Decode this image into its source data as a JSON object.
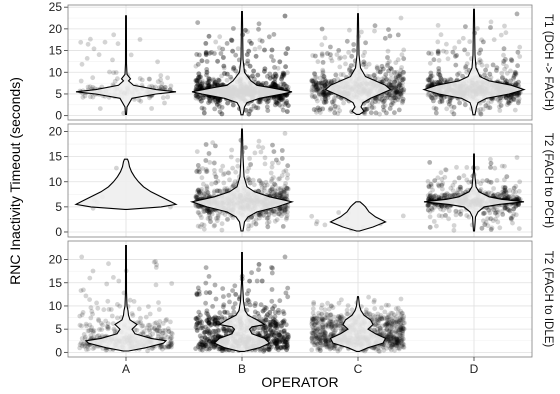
{
  "chart_data": {
    "type": "violin",
    "xlabel": "OPERATOR",
    "ylabel": "RNC Inactivity Timeout (seconds)",
    "categories": [
      "A",
      "B",
      "C",
      "D"
    ],
    "grid": true,
    "panels": [
      {
        "strip_label": "T1 (DCH -> FACH)",
        "ylim": [
          -1,
          25.5
        ],
        "yticks": [
          0,
          5,
          10,
          15,
          20,
          25
        ],
        "violins": [
          {
            "operator": "A",
            "n_points": 160,
            "max": 23,
            "min": 0.3,
            "profile": [
              [
                0.3,
                0.01
              ],
              [
                2,
                0.02
              ],
              [
                4,
                0.12
              ],
              [
                5,
                0.6
              ],
              [
                5.5,
                1.0
              ],
              [
                6,
                0.6
              ],
              [
                7,
                0.15
              ],
              [
                8,
                0.05
              ],
              [
                8.5,
                0.09
              ],
              [
                9.5,
                0.02
              ],
              [
                12,
                0.01
              ],
              [
                23,
                0.003
              ]
            ]
          },
          {
            "operator": "B",
            "n_points": 1700,
            "max": 24,
            "min": 0.2,
            "profile": [
              [
                0.2,
                0.02
              ],
              [
                2,
                0.05
              ],
              [
                3,
                0.1
              ],
              [
                4,
                0.35
              ],
              [
                5,
                0.8
              ],
              [
                5.5,
                1.0
              ],
              [
                6.5,
                0.55
              ],
              [
                7,
                0.3
              ],
              [
                8,
                0.18
              ],
              [
                10,
                0.05
              ],
              [
                13,
                0.02
              ],
              [
                24,
                0.003
              ]
            ]
          },
          {
            "operator": "C",
            "n_points": 900,
            "max": 23.5,
            "min": 0.3,
            "profile": [
              [
                0.3,
                0.03
              ],
              [
                1,
                0.12
              ],
              [
                2,
                0.06
              ],
              [
                3,
                0.1
              ],
              [
                4,
                0.25
              ],
              [
                5,
                0.45
              ],
              [
                6,
                0.65
              ],
              [
                7,
                0.55
              ],
              [
                8,
                0.35
              ],
              [
                9,
                0.15
              ],
              [
                11,
                0.05
              ],
              [
                14,
                0.02
              ],
              [
                23.5,
                0.003
              ]
            ]
          },
          {
            "operator": "D",
            "n_points": 1100,
            "max": 24.5,
            "min": 0.2,
            "profile": [
              [
                0.2,
                0.02
              ],
              [
                2,
                0.05
              ],
              [
                3,
                0.08
              ],
              [
                4,
                0.25
              ],
              [
                5,
                0.7
              ],
              [
                6,
                1.0
              ],
              [
                7,
                0.75
              ],
              [
                8,
                0.3
              ],
              [
                9,
                0.12
              ],
              [
                11,
                0.04
              ],
              [
                14,
                0.02
              ],
              [
                24.5,
                0.003
              ]
            ]
          }
        ]
      },
      {
        "strip_label": "T2 (FACH to PCH)",
        "ylim": [
          -1,
          21.5
        ],
        "yticks": [
          0,
          5,
          10,
          15,
          20
        ],
        "violins": [
          {
            "operator": "A",
            "n_points": 6,
            "max": 14.5,
            "min": 4.5,
            "profile": [
              [
                4.5,
                0.02
              ],
              [
                5,
                0.7
              ],
              [
                5.5,
                1.0
              ],
              [
                6,
                0.9
              ],
              [
                7,
                0.7
              ],
              [
                8,
                0.5
              ],
              [
                9,
                0.35
              ],
              [
                10,
                0.25
              ],
              [
                11,
                0.17
              ],
              [
                12,
                0.11
              ],
              [
                13,
                0.07
              ],
              [
                14,
                0.05
              ],
              [
                14.5,
                0.03
              ]
            ]
          },
          {
            "operator": "B",
            "n_points": 1000,
            "max": 20.5,
            "min": 0.2,
            "profile": [
              [
                0.2,
                0.02
              ],
              [
                2,
                0.05
              ],
              [
                3,
                0.12
              ],
              [
                4,
                0.3
              ],
              [
                5,
                0.7
              ],
              [
                6,
                1.0
              ],
              [
                7,
                0.55
              ],
              [
                8,
                0.25
              ],
              [
                9,
                0.1
              ],
              [
                11,
                0.04
              ],
              [
                15,
                0.02
              ],
              [
                20.5,
                0.003
              ]
            ]
          },
          {
            "operator": "C",
            "n_points": 12,
            "max": 6,
            "min": 0.2,
            "profile": [
              [
                0.2,
                0.03
              ],
              [
                1,
                0.3
              ],
              [
                2,
                0.55
              ],
              [
                3,
                0.35
              ],
              [
                4,
                0.22
              ],
              [
                5,
                0.15
              ],
              [
                5.5,
                0.1
              ],
              [
                6,
                0.04
              ]
            ]
          },
          {
            "operator": "D",
            "n_points": 800,
            "max": 15.5,
            "min": 0.2,
            "profile": [
              [
                0.2,
                0.01
              ],
              [
                3,
                0.03
              ],
              [
                4,
                0.08
              ],
              [
                5,
                0.2
              ],
              [
                5.5,
                0.5
              ],
              [
                6,
                1.0
              ],
              [
                6.5,
                0.55
              ],
              [
                7,
                0.3
              ],
              [
                8,
                0.1
              ],
              [
                9,
                0.04
              ],
              [
                12,
                0.01
              ],
              [
                15.5,
                0.003
              ]
            ]
          }
        ]
      },
      {
        "strip_label": "T2 (FACH to IDLE)",
        "ylim": [
          -1,
          24
        ],
        "yticks": [
          0,
          5,
          10,
          15,
          20
        ],
        "violins": [
          {
            "operator": "A",
            "n_points": 400,
            "max": 23,
            "min": 0.3,
            "profile": [
              [
                0.3,
                0.05
              ],
              [
                1,
                0.4
              ],
              [
                2,
                0.75
              ],
              [
                2.5,
                0.8
              ],
              [
                3,
                0.5
              ],
              [
                4,
                0.18
              ],
              [
                5,
                0.12
              ],
              [
                6,
                0.22
              ],
              [
                7,
                0.08
              ],
              [
                8,
                0.05
              ],
              [
                9,
                0.04
              ],
              [
                10,
                0.02
              ],
              [
                13,
                0.01
              ],
              [
                23,
                0.003
              ]
            ]
          },
          {
            "operator": "B",
            "n_points": 1300,
            "max": 21.5,
            "min": 0.2,
            "profile": [
              [
                0.2,
                0.05
              ],
              [
                1,
                0.35
              ],
              [
                2,
                0.55
              ],
              [
                3,
                0.45
              ],
              [
                4,
                0.2
              ],
              [
                5,
                0.15
              ],
              [
                5.5,
                0.2
              ],
              [
                6,
                0.45
              ],
              [
                7,
                0.3
              ],
              [
                8,
                0.12
              ],
              [
                9,
                0.06
              ],
              [
                11,
                0.03
              ],
              [
                15,
                0.01
              ],
              [
                21.5,
                0.003
              ]
            ]
          },
          {
            "operator": "C",
            "n_points": 900,
            "max": 12,
            "min": 0.2,
            "profile": [
              [
                0.2,
                0.03
              ],
              [
                1,
                0.2
              ],
              [
                2,
                0.5
              ],
              [
                3,
                0.55
              ],
              [
                4,
                0.35
              ],
              [
                5,
                0.2
              ],
              [
                6,
                0.3
              ],
              [
                7,
                0.25
              ],
              [
                8,
                0.12
              ],
              [
                9,
                0.06
              ],
              [
                10,
                0.03
              ],
              [
                12,
                0.01
              ]
            ]
          },
          {
            "operator": "D",
            "n_points": 0,
            "max": null,
            "min": null,
            "profile": []
          }
        ]
      }
    ]
  }
}
